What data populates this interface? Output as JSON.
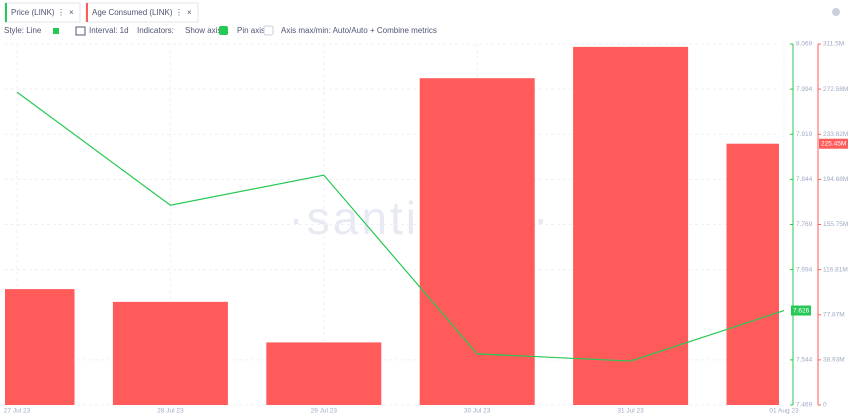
{
  "tabs": [
    "Price (LINK)",
    "Age Consumed (LINK)"
  ],
  "toolbar": {
    "style": "Style: Line",
    "interval": "Interval: 1d",
    "indicators": "Indicators:",
    "show_axis": "Show axis",
    "pin_axis": "Pin axis",
    "axis_minmax": "Axis max/min: Auto/Auto",
    "combine": "+ Combine metrics"
  },
  "chart_data": {
    "type": "combo",
    "watermark": "·santiment·",
    "categories": [
      "27 Jul 23",
      "28 Jul 23",
      "29 Jul 23",
      "30 Jul 23",
      "31 Jul 23",
      "01 Aug 23"
    ],
    "series": [
      {
        "name": "Price (LINK)",
        "type": "line",
        "axis": "y",
        "color": "#26c953",
        "values": [
          7.989,
          7.801,
          7.851,
          7.554,
          7.542,
          7.626
        ]
      },
      {
        "name": "Age Consumed (LINK)",
        "type": "bar",
        "axis": "y2",
        "color": "#ff5b5b",
        "values": [
          100000000,
          89000000,
          54000000,
          282000000,
          309000000,
          225450000
        ],
        "last_label": "225.45M"
      }
    ],
    "ylim": [
      7.469,
      8.069
    ],
    "yticks": [
      7.469,
      7.544,
      7.694,
      7.769,
      7.844,
      7.919,
      7.994,
      8.069
    ],
    "y2lim": [
      0,
      311500000
    ],
    "y2ticks": [
      0,
      {
        "value": 38930000,
        "label": "38.93M"
      },
      {
        "value": 77870000,
        "label": "77.87M"
      },
      {
        "value": 116810000,
        "label": "116.81M"
      },
      {
        "value": 155750000,
        "label": "155.75M"
      },
      {
        "value": 194680000,
        "label": "194.68M"
      },
      {
        "value": 233620000,
        "label": "233.62M"
      },
      {
        "value": 272580000,
        "label": "272.58M"
      },
      {
        "value": 311500000,
        "label": "311.5M"
      }
    ],
    "grid": true
  }
}
